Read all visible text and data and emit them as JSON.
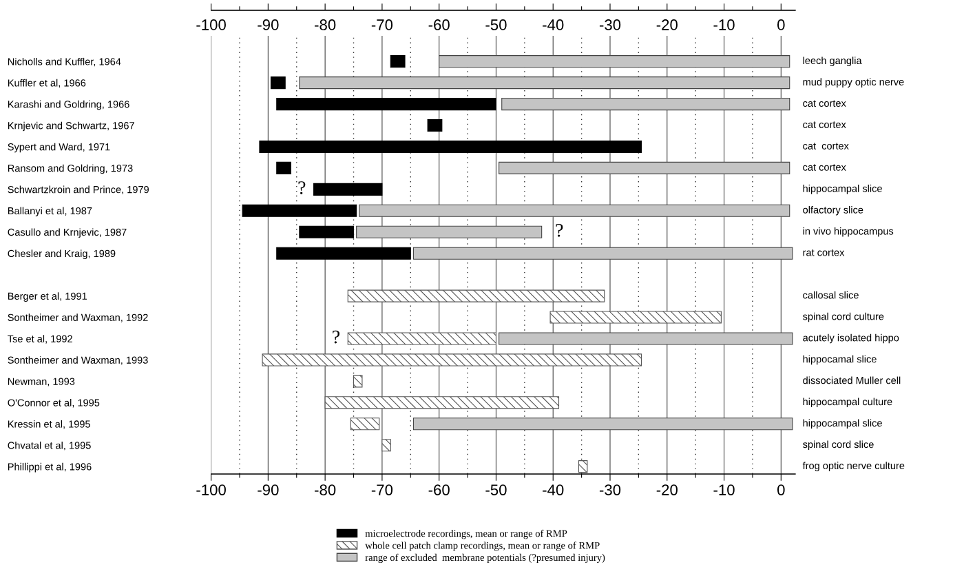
{
  "chart_data": {
    "type": "bar",
    "orientation": "horizontal",
    "categories": [
      "Nicholls and Kuffler, 1964",
      "Kuffler et al, 1966",
      "Karashi and Goldring, 1966",
      "Krnjevic and Schwartz, 1967",
      "Sypert and Ward, 1971",
      "Ransom and Goldring, 1973",
      "Schwartzkroin and Prince, 1979",
      "Ballanyi et al, 1987",
      "Casullo and Krnjevic, 1987",
      "Chesler and Kraig, 1989",
      null,
      "Berger et al, 1991",
      "Sontheimer and Waxman, 1992",
      "Tse et al, 1992",
      "Sontheimer and Waxman, 1993",
      "Newman, 1993",
      "O'Connor et al, 1995",
      "Kressin et al, 1995",
      "Chvatal et al, 1995",
      "Phillippi et al, 1996"
    ],
    "series": [
      {
        "name": "microelectrode recordings, mean or range of RMP",
        "color": "#000000",
        "base": [
          -68.5,
          -89.5,
          -88.5,
          -62,
          -91.5,
          -88.5,
          -82,
          -94.5,
          -84.5,
          -88.5,
          null,
          null,
          null,
          null,
          null,
          null,
          null,
          null,
          null,
          null
        ],
        "values": [
          2.5,
          2.5,
          38.5,
          2.5,
          67,
          2.5,
          12,
          20,
          9.5,
          23.5,
          null,
          null,
          null,
          null,
          null,
          null,
          null,
          null,
          null,
          null
        ]
      },
      {
        "name": "whole cell patch clamp recordings, mean or range of RMP",
        "color": "#555555",
        "base": [
          null,
          null,
          null,
          null,
          null,
          null,
          null,
          null,
          null,
          null,
          null,
          -76,
          -40.5,
          -76,
          -91,
          -75,
          -80,
          -75.5,
          -70,
          -35.5
        ],
        "values": [
          null,
          null,
          null,
          null,
          null,
          null,
          null,
          null,
          null,
          null,
          null,
          45,
          30,
          26,
          66.5,
          1.5,
          41,
          5,
          1.5,
          1.5
        ]
      },
      {
        "name": "range of excluded  membrane potentials (?presumed injury)",
        "color": "#c4c4c4",
        "base": [
          -60,
          -84.5,
          -49,
          null,
          null,
          -49.5,
          null,
          -74,
          -74.5,
          -64.5,
          null,
          null,
          null,
          -49.5,
          null,
          null,
          null,
          -64.5,
          null,
          null
        ],
        "values": [
          61.5,
          86,
          50.5,
          null,
          null,
          51,
          null,
          75.5,
          32.5,
          66.5,
          null,
          null,
          null,
          51.5,
          null,
          null,
          null,
          66.5,
          null,
          null
        ]
      }
    ],
    "xlim": [
      -100,
      2.5
    ],
    "xticks": [
      -100,
      {
        "value": -95,
        "label": null
      },
      -90,
      {
        "value": -85,
        "label": null
      },
      -80,
      {
        "value": -75,
        "label": null
      },
      -70,
      {
        "value": -65,
        "label": null
      },
      -60,
      {
        "value": -55,
        "label": null
      },
      -50,
      {
        "value": -45,
        "label": null
      },
      -40,
      {
        "value": -35,
        "label": null
      },
      -30,
      {
        "value": -25,
        "label": null
      },
      -20,
      {
        "value": -15,
        "label": null
      },
      -10,
      {
        "value": -5,
        "label": null
      },
      0
    ],
    "x2lim": [
      -100,
      2.5
    ],
    "x2ticks": [
      -100,
      {
        "value": -95,
        "label": null
      },
      -90,
      {
        "value": -85,
        "label": null
      },
      -80,
      {
        "value": -75,
        "label": null
      },
      -70,
      {
        "value": -65,
        "label": null
      },
      -60,
      {
        "value": -55,
        "label": null
      },
      -50,
      {
        "value": -45,
        "label": null
      },
      -40,
      {
        "value": -35,
        "label": null
      },
      -30,
      {
        "value": -25,
        "label": null
      },
      -20,
      {
        "value": -15,
        "label": null
      },
      -10,
      {
        "value": -5,
        "label": null
      },
      0
    ],
    "grid": "x",
    "legend": "bottom",
    "annotations": [
      {
        "text": "?",
        "x": -82,
        "y": "Schwartzkroin and Prince, 1979"
      },
      {
        "text": "?",
        "x": -42,
        "y": "Casullo and Krnjevic, 1987"
      },
      {
        "text": "?",
        "x": -76,
        "y": "Tse et al, 1992"
      },
      "leech ganglia",
      "mud puppy optic nerve",
      "cat cortex",
      "cat cortex",
      "cat  cortex",
      "cat cortex",
      "hippocampal slice",
      "olfactory slice",
      "in vivo hippocampus",
      "rat cortex",
      "callosal slice",
      "spinal cord culture",
      "acutely isolated hippo",
      "hippocamal slice",
      "dissociated Muller cell",
      "hippocampal culture",
      "hippocampal slice",
      "spinal cord slice",
      "frog optic nerve culture"
    ]
  }
}
